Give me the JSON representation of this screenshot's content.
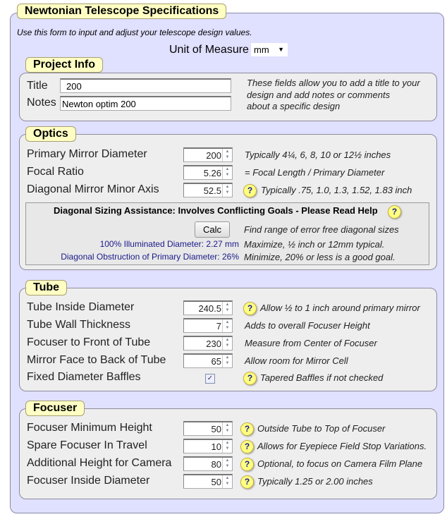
{
  "title": "Newtonian Telescope Specifications",
  "intro": "Use this form to input and adjust your telescope design values.",
  "unit": {
    "label": "Unit of Measure",
    "value": "mm"
  },
  "project": {
    "legend": "Project Info",
    "title_label": "Title",
    "title_value": "200",
    "notes_label": "Notes",
    "notes_value": "Newton optim 200",
    "help": [
      "These fields allow you to add a title to your",
      "design and add notes or comments",
      "about a specific design"
    ]
  },
  "optics": {
    "legend": "Optics",
    "rows": [
      {
        "label": "Primary Mirror Diameter",
        "value": "200",
        "note": "Typically 4¼, 6, 8, 10 or 12½ inches",
        "help": false
      },
      {
        "label": "Focal Ratio",
        "value": "5.26",
        "note": "= Focal Length / Primary Diameter",
        "help": false
      },
      {
        "label": "Diagonal Mirror Minor Axis",
        "value": "52.5",
        "note": "Typically .75, 1.0, 1.3, 1.52, 1.83 inch",
        "help": true
      }
    ],
    "assist": {
      "heading": "Diagonal Sizing Assistance: Involves Conflicting Goals - Please Read Help",
      "calc": "Calc",
      "calc_note": "Find range of error free diagonal sizes",
      "illum": "100% Illuminated Diameter: 2.27 mm",
      "illum_note": "Maximize, ½ inch or 12mm typical.",
      "obstr": "Diagonal Obstruction of Primary Diameter: 26%",
      "obstr_note": "Minimize, 20% or less is a good goal."
    }
  },
  "tube": {
    "legend": "Tube",
    "rows": [
      {
        "label": "Tube Inside Diameter",
        "value": "240.5",
        "note": "Allow ½ to 1 inch around primary mirror",
        "help": true
      },
      {
        "label": "Tube Wall Thickness",
        "value": "7",
        "note": "Adds to overall Focuser Height",
        "help": false
      },
      {
        "label": "Focuser to Front of Tube",
        "value": "230",
        "note": "Measure from Center of Focuser",
        "help": false
      },
      {
        "label": "Mirror Face to Back of Tube",
        "value": "65",
        "note": "Allow room for Mirror Cell",
        "help": false
      },
      {
        "label": "Fixed Diameter Baffles",
        "checked": true,
        "note": "Tapered Baffles if not checked",
        "help": true
      }
    ]
  },
  "focuser": {
    "legend": "Focuser",
    "rows": [
      {
        "label": "Focuser Minimum Height",
        "value": "50",
        "note": "Outside Tube to Top of Focuser",
        "help": true
      },
      {
        "label": "Spare Focuser In Travel",
        "value": "10",
        "note": "Allows for Eyepiece Field Stop Variations.",
        "help": true
      },
      {
        "label": "Additional Height for Camera",
        "value": "80",
        "note": "Optional, to focus on Camera Film Plane",
        "help": true
      },
      {
        "label": "Focuser Inside Diameter",
        "value": "50",
        "note": "Typically 1.25 or 2.00 inches",
        "help": true
      }
    ]
  }
}
